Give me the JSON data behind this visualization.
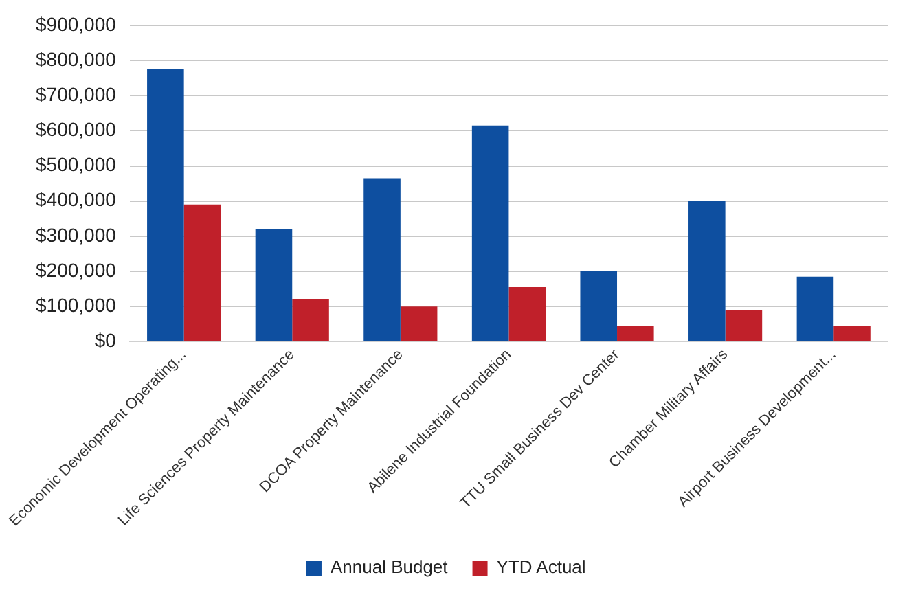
{
  "chart_data": {
    "type": "bar",
    "categories": [
      "Economic Development Operating...",
      "Life Sciences Property Maintenance",
      "DCOA Property Maintenance",
      "Abilene Industrial Foundation",
      "TTU Small Business Dev Center",
      "Chamber Military Affairs",
      "Airport Business Development..."
    ],
    "series": [
      {
        "name": "Annual Budget",
        "color": "#0e4fa0",
        "values": [
          775000,
          320000,
          465000,
          615000,
          200000,
          400000,
          185000
        ]
      },
      {
        "name": "YTD Actual",
        "color": "#c0202a",
        "values": [
          390000,
          120000,
          100000,
          155000,
          45000,
          90000,
          45000
        ]
      }
    ],
    "ylim": [
      0,
      900000
    ],
    "yticks": [
      {
        "value": 0,
        "label": "$0"
      },
      {
        "value": 100000,
        "label": "$100,000"
      },
      {
        "value": 200000,
        "label": "$200,000"
      },
      {
        "value": 300000,
        "label": "$300,000"
      },
      {
        "value": 400000,
        "label": "$400,000"
      },
      {
        "value": 500000,
        "label": "$500,000"
      },
      {
        "value": 600000,
        "label": "$600,000"
      },
      {
        "value": 700000,
        "label": "$700,000"
      },
      {
        "value": 800000,
        "label": "$800,000"
      },
      {
        "value": 900000,
        "label": "$900,000"
      }
    ],
    "grid": "y",
    "legend": "bottom"
  }
}
